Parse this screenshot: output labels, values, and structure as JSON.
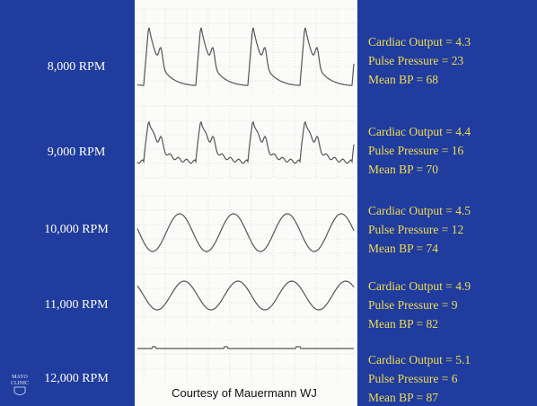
{
  "rows": [
    {
      "rpm": "8,000 RPM",
      "lines": [
        "Cardiac Output = 4.3",
        "Pulse Pressure = 23",
        "Mean BP = 68"
      ]
    },
    {
      "rpm": "9,000 RPM",
      "lines": [
        "Cardiac Output = 4.4",
        "Pulse Pressure = 16",
        "Mean BP = 70"
      ]
    },
    {
      "rpm": "10,000 RPM",
      "lines": [
        "Cardiac Output = 4.5",
        "Pulse Pressure = 12",
        "Mean BP = 74"
      ]
    },
    {
      "rpm": "11,000 RPM",
      "lines": [
        "Cardiac Output = 4.9",
        "Pulse Pressure = 9",
        "Mean BP = 82"
      ]
    },
    {
      "rpm": "12,000 RPM",
      "lines": [
        "Cardiac Output = 5.1",
        "Pulse Pressure = 6",
        "Mean BP = 87"
      ]
    }
  ],
  "caption": "Courtesy of Mauermann WJ",
  "logo": [
    "MAYO",
    "CLINIC"
  ]
}
